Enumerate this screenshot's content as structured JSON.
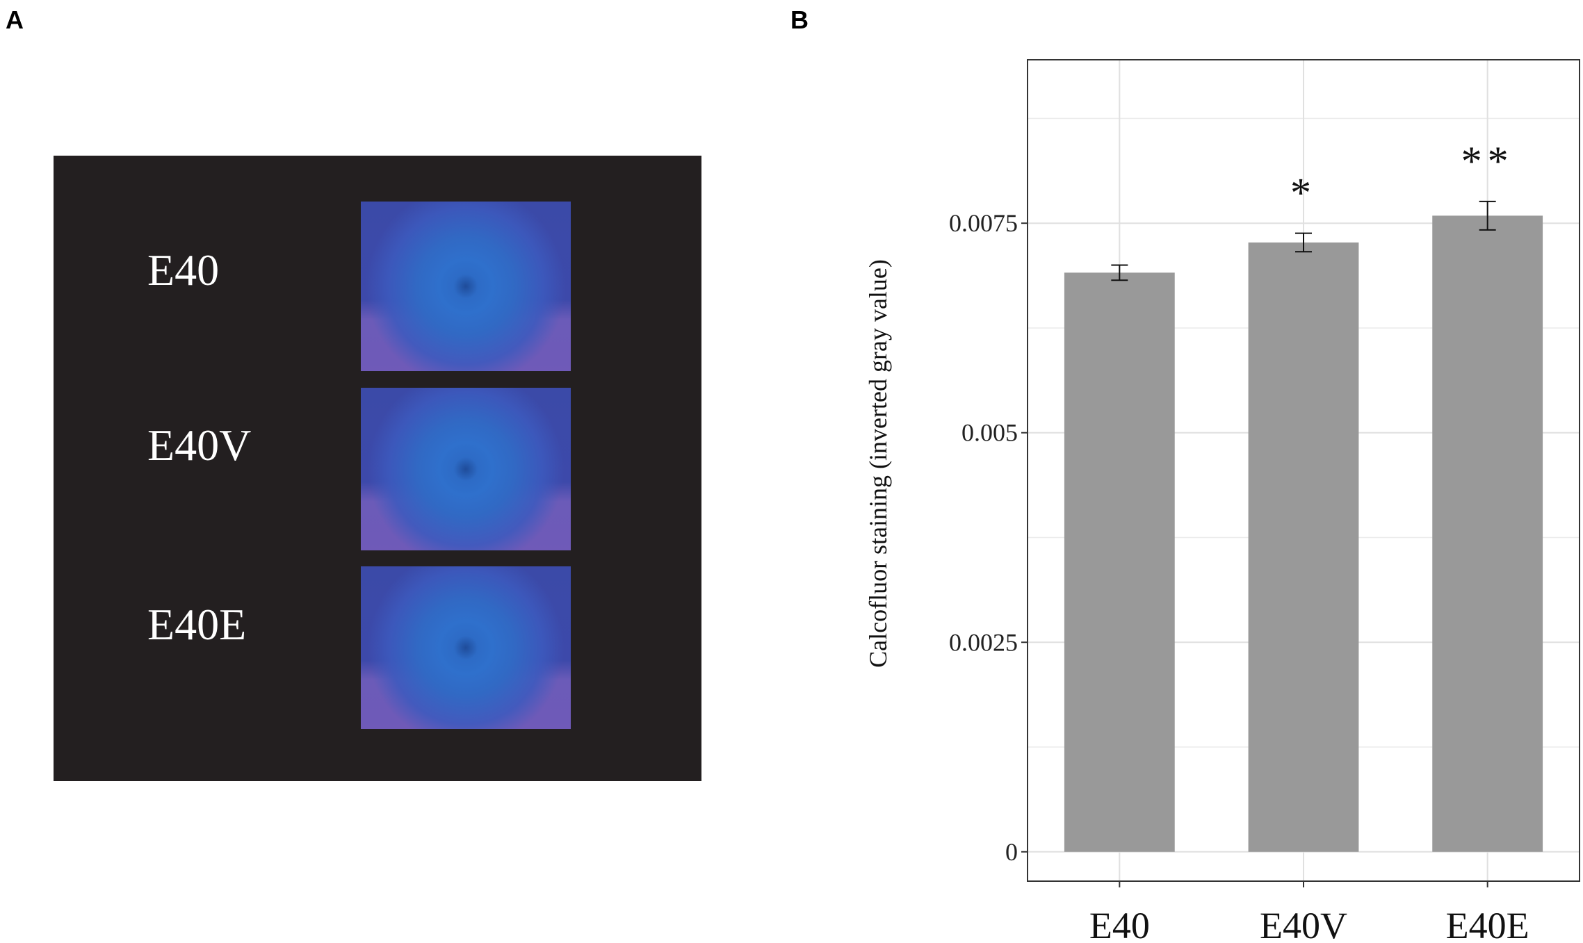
{
  "panels": {
    "a_label": "A",
    "b_label": "B"
  },
  "images": [
    {
      "label": "E40"
    },
    {
      "label": "E40V"
    },
    {
      "label": "E40E"
    }
  ],
  "chart_data": {
    "type": "bar",
    "categories": [
      "E40",
      "E40V",
      "E40E"
    ],
    "values": [
      0.00691,
      0.00727,
      0.00759
    ],
    "errors": [
      9e-05,
      0.00011,
      0.00017
    ],
    "significance": [
      "",
      "*",
      "**"
    ],
    "ylabel": "Calcofluor staining (inverted gray value)",
    "xlabel": "",
    "ylim": [
      -0.00035,
      0.00945
    ],
    "yticks": [
      0,
      0.0025,
      0.005,
      0.0075
    ],
    "ytick_labels": [
      "0",
      "0.0025",
      "0.005",
      "0.0075"
    ],
    "grid": true,
    "bar_color": "#999999"
  }
}
